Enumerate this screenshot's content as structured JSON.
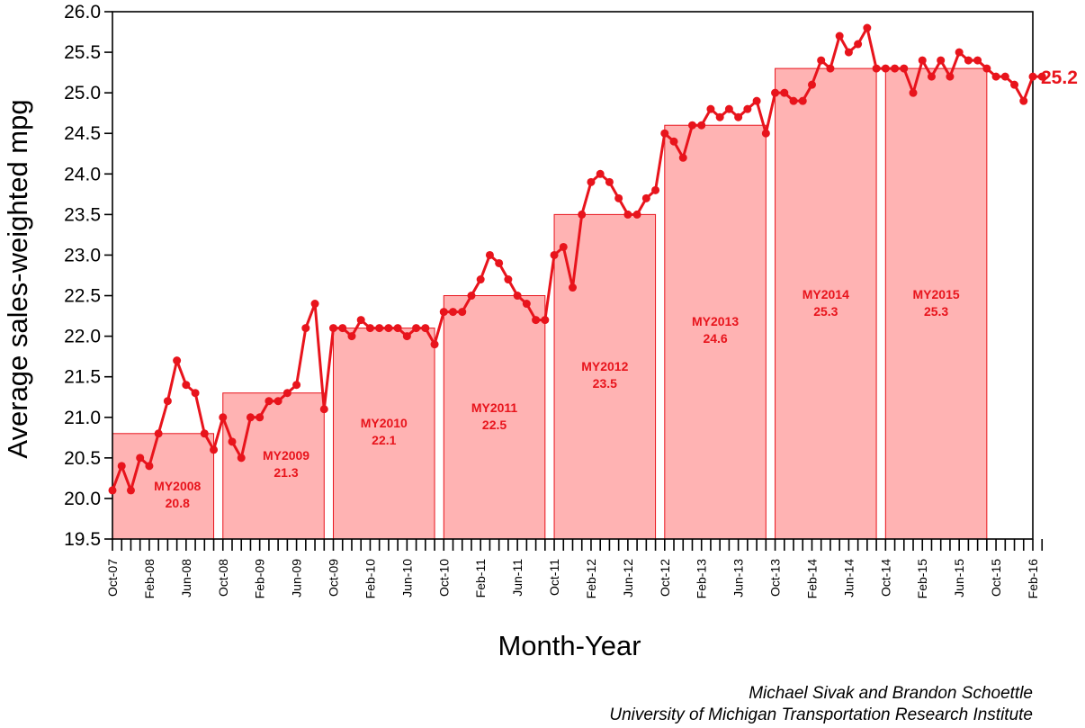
{
  "chart_data": {
    "type": "line",
    "title": "",
    "xlabel": "Month-Year",
    "ylabel": "Average sales-weighted mpg",
    "ylim": [
      19.5,
      26.0
    ],
    "y_ticks": [
      "19.5",
      "20.0",
      "20.5",
      "21.0",
      "21.5",
      "22.0",
      "22.5",
      "23.0",
      "23.5",
      "24.0",
      "24.5",
      "25.0",
      "25.5",
      "26.0"
    ],
    "x_tick_labels": [
      "Oct-07",
      "Feb-08",
      "Jun-08",
      "Oct-08",
      "Feb-09",
      "Jun-09",
      "Oct-09",
      "Feb-10",
      "Jun-10",
      "Oct-10",
      "Feb-11",
      "Jun-11",
      "Oct-11",
      "Feb-12",
      "Jun-12",
      "Oct-12",
      "Feb-13",
      "Jun-13",
      "Oct-13",
      "Feb-14",
      "Jun-14",
      "Oct-14",
      "Feb-15",
      "Jun-15",
      "Oct-15",
      "Feb-16"
    ],
    "x_start": "Oct-07",
    "x_end": "Feb-16",
    "grid": false,
    "line_color": "#e8141c",
    "bar_fill": "#ffb3b3",
    "bar_edge": "#e8141c",
    "series": [
      {
        "values": [
          20.1,
          20.4,
          20.1,
          20.5,
          20.4,
          20.8,
          21.2,
          21.7,
          21.4,
          21.3,
          20.8,
          20.6,
          21.0,
          20.7,
          20.5,
          21.0,
          21.0,
          21.2,
          21.2,
          21.3,
          21.4,
          22.1,
          22.4,
          21.1,
          22.1,
          22.1,
          22.0,
          22.2,
          22.1,
          22.1,
          22.1,
          22.1,
          22.0,
          22.1,
          22.1,
          21.9,
          22.3,
          22.3,
          22.3,
          22.5,
          22.7,
          23.0,
          22.9,
          22.7,
          22.5,
          22.4,
          22.2,
          22.2,
          23.0,
          23.1,
          22.6,
          23.5,
          23.9,
          24.0,
          23.9,
          23.7,
          23.5,
          23.5,
          23.7,
          23.8,
          24.5,
          24.4,
          24.2,
          24.6,
          24.6,
          24.8,
          24.7,
          24.8,
          24.7,
          24.8,
          24.9,
          24.5,
          25.0,
          25.0,
          24.9,
          24.9,
          25.1,
          25.4,
          25.3,
          25.7,
          25.5,
          25.6,
          25.8,
          25.3,
          25.3,
          25.3,
          25.3,
          25.0,
          25.4,
          25.2,
          25.4,
          25.2,
          25.5,
          25.4,
          25.4,
          25.3,
          25.2,
          25.2,
          25.1,
          24.9,
          25.2,
          25.2
        ]
      }
    ],
    "model_years": [
      {
        "label": "MY2008",
        "value": 20.8,
        "start": "Oct-07",
        "end": "Sep-08",
        "display": "20.8"
      },
      {
        "label": "MY2009",
        "value": 21.3,
        "start": "Oct-08",
        "end": "Sep-09",
        "display": "21.3"
      },
      {
        "label": "MY2010",
        "value": 22.1,
        "start": "Oct-09",
        "end": "Sep-10",
        "display": "22.1"
      },
      {
        "label": "MY2011",
        "value": 22.5,
        "start": "Oct-10",
        "end": "Sep-11",
        "display": "22.5"
      },
      {
        "label": "MY2012",
        "value": 23.5,
        "start": "Oct-11",
        "end": "Sep-12",
        "display": "23.5"
      },
      {
        "label": "MY2013",
        "value": 24.6,
        "start": "Oct-12",
        "end": "Sep-13",
        "display": "24.6"
      },
      {
        "label": "MY2014",
        "value": 25.3,
        "start": "Oct-13",
        "end": "Sep-14",
        "display": "25.3"
      },
      {
        "label": "MY2015",
        "value": 25.3,
        "start": "Oct-14",
        "end": "Sep-15",
        "display": "25.3"
      }
    ],
    "end_label": "25.2"
  },
  "credits": {
    "line1": "Michael Sivak and Brandon Schoettle",
    "line2": "University of Michigan Transportation Research Institute"
  }
}
